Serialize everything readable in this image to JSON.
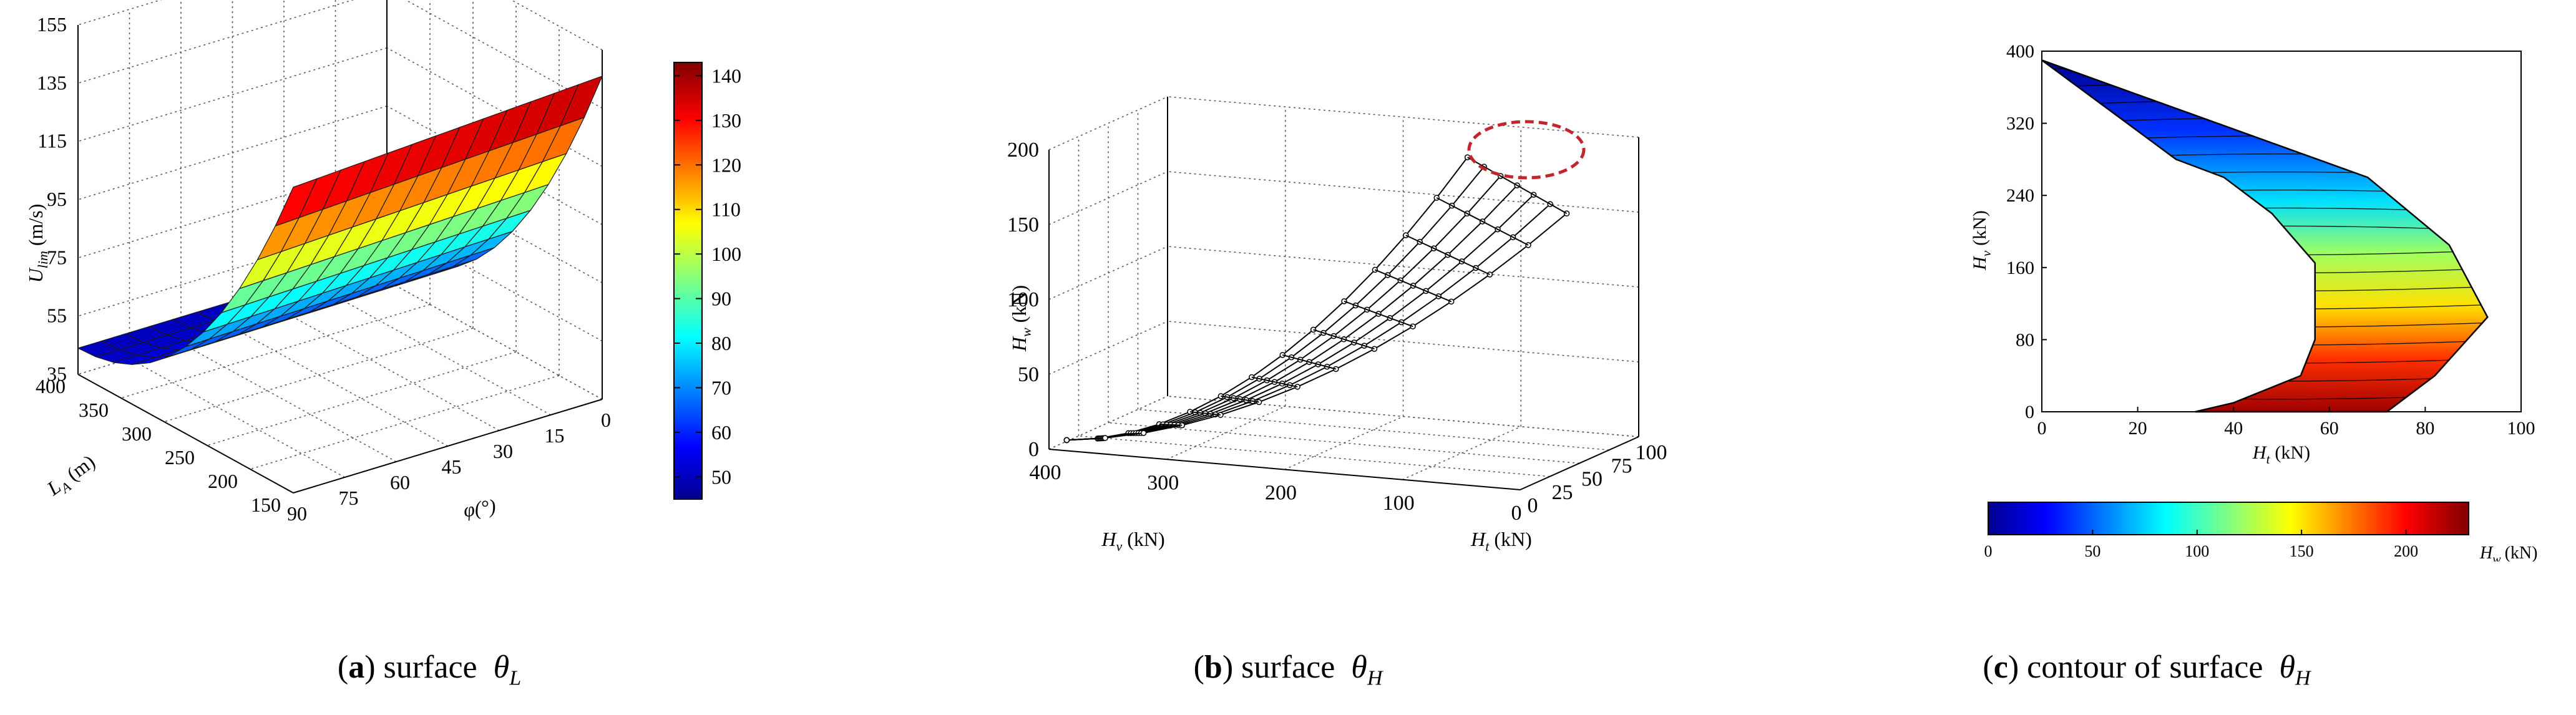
{
  "chart_data": [
    {
      "type": "surface3d",
      "title": "",
      "xlabel": "φ (°)",
      "ylabel": "L_A (m)",
      "zlabel": "U_lim (m/s)",
      "x_ticks": [
        "0",
        "15",
        "30",
        "45",
        "60",
        "75",
        "90"
      ],
      "y_ticks": [
        "150",
        "200",
        "250",
        "300",
        "350",
        "400"
      ],
      "z_ticks": [
        "35",
        "55",
        "75",
        "95",
        "115",
        "135",
        "155"
      ],
      "x_range": [
        0,
        90
      ],
      "y_range": [
        150,
        400
      ],
      "z_range": [
        35,
        155
      ],
      "colorbar": {
        "ticks": [
          "50",
          "60",
          "70",
          "80",
          "90",
          "100",
          "110",
          "120",
          "130",
          "140"
        ],
        "range": [
          45,
          143
        ]
      },
      "caption": {
        "label": "a",
        "text": "surface",
        "symbol": "θ",
        "subscript": "L"
      }
    },
    {
      "type": "line3d",
      "xlabel": "H_t (kN)",
      "ylabel": "H_v (kN)",
      "zlabel": "H_w (kN)",
      "x_ticks": [
        "0",
        "25",
        "50",
        "75",
        "100"
      ],
      "y_ticks": [
        "0",
        "100",
        "200",
        "300",
        "400"
      ],
      "z_ticks": [
        "0",
        "50",
        "100",
        "150",
        "200"
      ],
      "x_range": [
        0,
        100
      ],
      "y_range": [
        0,
        400
      ],
      "z_range": [
        0,
        200
      ],
      "annotation": "dashed ellipse highlighting the top cluster",
      "caption": {
        "label": "b",
        "text": "surface",
        "symbol": "θ",
        "subscript": "H"
      }
    },
    {
      "type": "contour",
      "xlabel": "H_t (kN)",
      "ylabel": "H_v (kN)",
      "x_ticks": [
        "0",
        "20",
        "40",
        "60",
        "80",
        "100"
      ],
      "y_ticks": [
        "0",
        "80",
        "160",
        "240",
        "320",
        "400"
      ],
      "x_range": [
        0,
        100
      ],
      "y_range": [
        0,
        400
      ],
      "boundary": [
        [
          0,
          390
        ],
        [
          68,
          260
        ],
        [
          85,
          185
        ],
        [
          93,
          105
        ],
        [
          82,
          40
        ],
        [
          72,
          0
        ],
        [
          32,
          0
        ],
        [
          40,
          10
        ],
        [
          54,
          40
        ],
        [
          57,
          80
        ],
        [
          57,
          165
        ],
        [
          48,
          220
        ],
        [
          38,
          260
        ],
        [
          28,
          280
        ],
        [
          0,
          390
        ]
      ],
      "colorbar": {
        "label": "H_w (kN)",
        "ticks": [
          "0",
          "50",
          "100",
          "150",
          "200"
        ],
        "range": [
          0,
          230
        ]
      },
      "caption": {
        "label": "c",
        "text": "contour of surface",
        "symbol": "θ",
        "subscript": "H"
      }
    }
  ],
  "axis_text": {
    "a_z_main": "U",
    "a_z_sub": "lim",
    "a_z_unit": "(m/s)",
    "a_y_main": "L",
    "a_y_sub": "A",
    "a_y_unit": "(m)",
    "a_x": "φ(°)",
    "b_z_main": "H",
    "b_z_sub": "w",
    "b_z_unit": "(kN)",
    "b_y_main": "H",
    "b_y_sub": "v",
    "b_y_unit": "(kN)",
    "b_x_main": "H",
    "b_x_sub": "t",
    "b_x_unit": "(kN)",
    "c_y_main": "H",
    "c_y_sub": "v",
    "c_y_unit": "(kN)",
    "c_x_main": "H",
    "c_x_sub": "t",
    "c_x_unit": "(kN)",
    "c_cb_main": "H",
    "c_cb_sub": "w",
    "c_cb_unit": "(kN)"
  },
  "colors": {
    "jet": [
      "#00008f",
      "#0000ff",
      "#0080ff",
      "#00ffff",
      "#80ff80",
      "#ffff00",
      "#ff8000",
      "#ff0000",
      "#800000"
    ],
    "ellipse": "#c0272d"
  }
}
